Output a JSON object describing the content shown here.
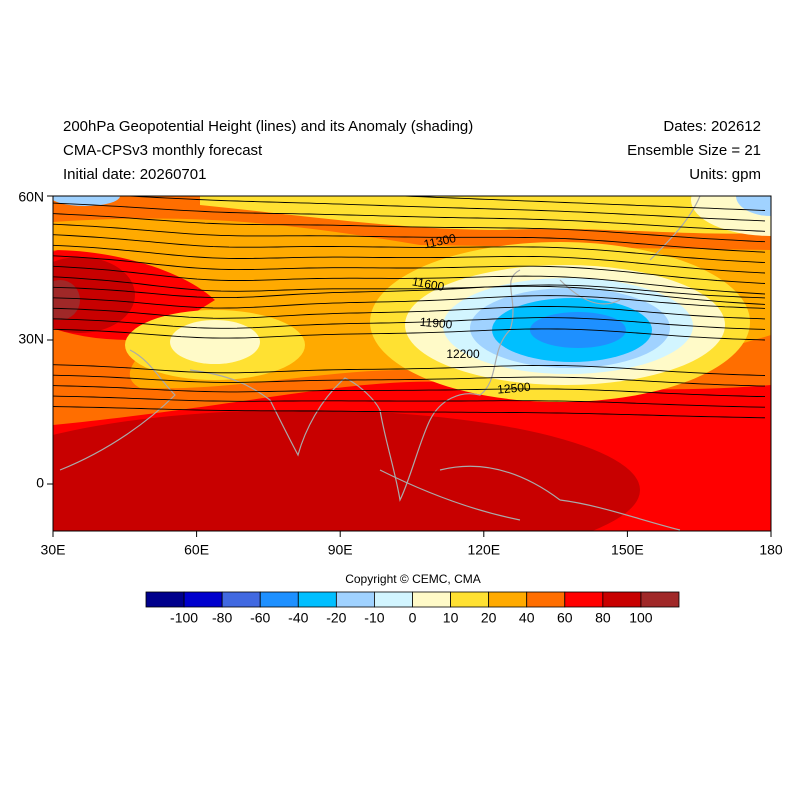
{
  "header": {
    "title_left": [
      "200hPa Geopotential Height (lines) and its Anomaly (shading)",
      "CMA-CPSv3 monthly forecast",
      "Initial date: 20260701"
    ],
    "title_right": [
      "Dates: 202612",
      "Ensemble Size = 21",
      "Units: gpm"
    ]
  },
  "map": {
    "lon_labels": [
      "30E",
      "60E",
      "90E",
      "120E",
      "150E",
      "180"
    ],
    "lat_labels": [
      "60N",
      "30N",
      "0"
    ],
    "contour_labels": [
      "11300",
      "11600",
      "11900",
      "12200",
      "12500"
    ]
  },
  "copyright": "Copyright © CEMC, CMA",
  "colorbar": {
    "colors": [
      "#00008c",
      "#0000cd",
      "#4169e1",
      "#1e90ff",
      "#00bfff",
      "#a0d2ff",
      "#d2f5ff",
      "#fffac8",
      "#ffe132",
      "#ffaa00",
      "#ff6e00",
      "#ff0000",
      "#c80000",
      "#a02828"
    ],
    "labels": [
      "-100",
      "-80",
      "-60",
      "-40",
      "-20",
      "-10",
      "0",
      "10",
      "20",
      "40",
      "60",
      "80",
      "100"
    ]
  }
}
